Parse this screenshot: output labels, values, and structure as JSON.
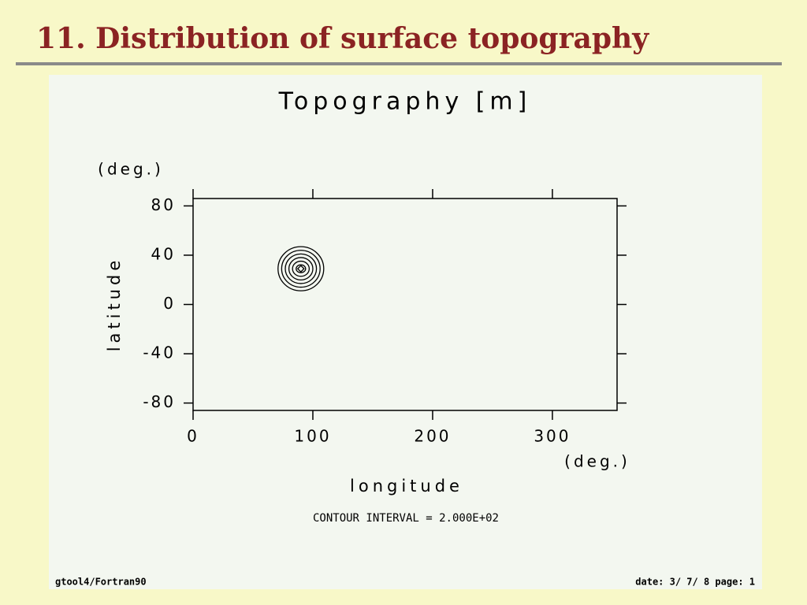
{
  "slide": {
    "title": "11. Distribution of surface topography"
  },
  "chart_data": {
    "type": "contour",
    "title": "Topography [m]",
    "x_label": "longitude",
    "y_label": "latitude",
    "x_unit": "(deg.)",
    "y_unit": "(deg.)",
    "xlim": [
      0,
      354
    ],
    "xticks": [
      0,
      100,
      200,
      300
    ],
    "ylim": [
      -86,
      86
    ],
    "yticks": [
      -80,
      -40,
      0,
      40,
      80
    ],
    "peak": {
      "x": 90,
      "y": 29
    },
    "levels": [
      200,
      400,
      600,
      800,
      1000,
      1200
    ],
    "color": "#000000",
    "annotation": "CONTOUR INTERVAL = 2.000E+02",
    "footer_left": "gtool4/Fortran90",
    "footer_right": "date: 3/ 7/ 8 page: 1"
  }
}
